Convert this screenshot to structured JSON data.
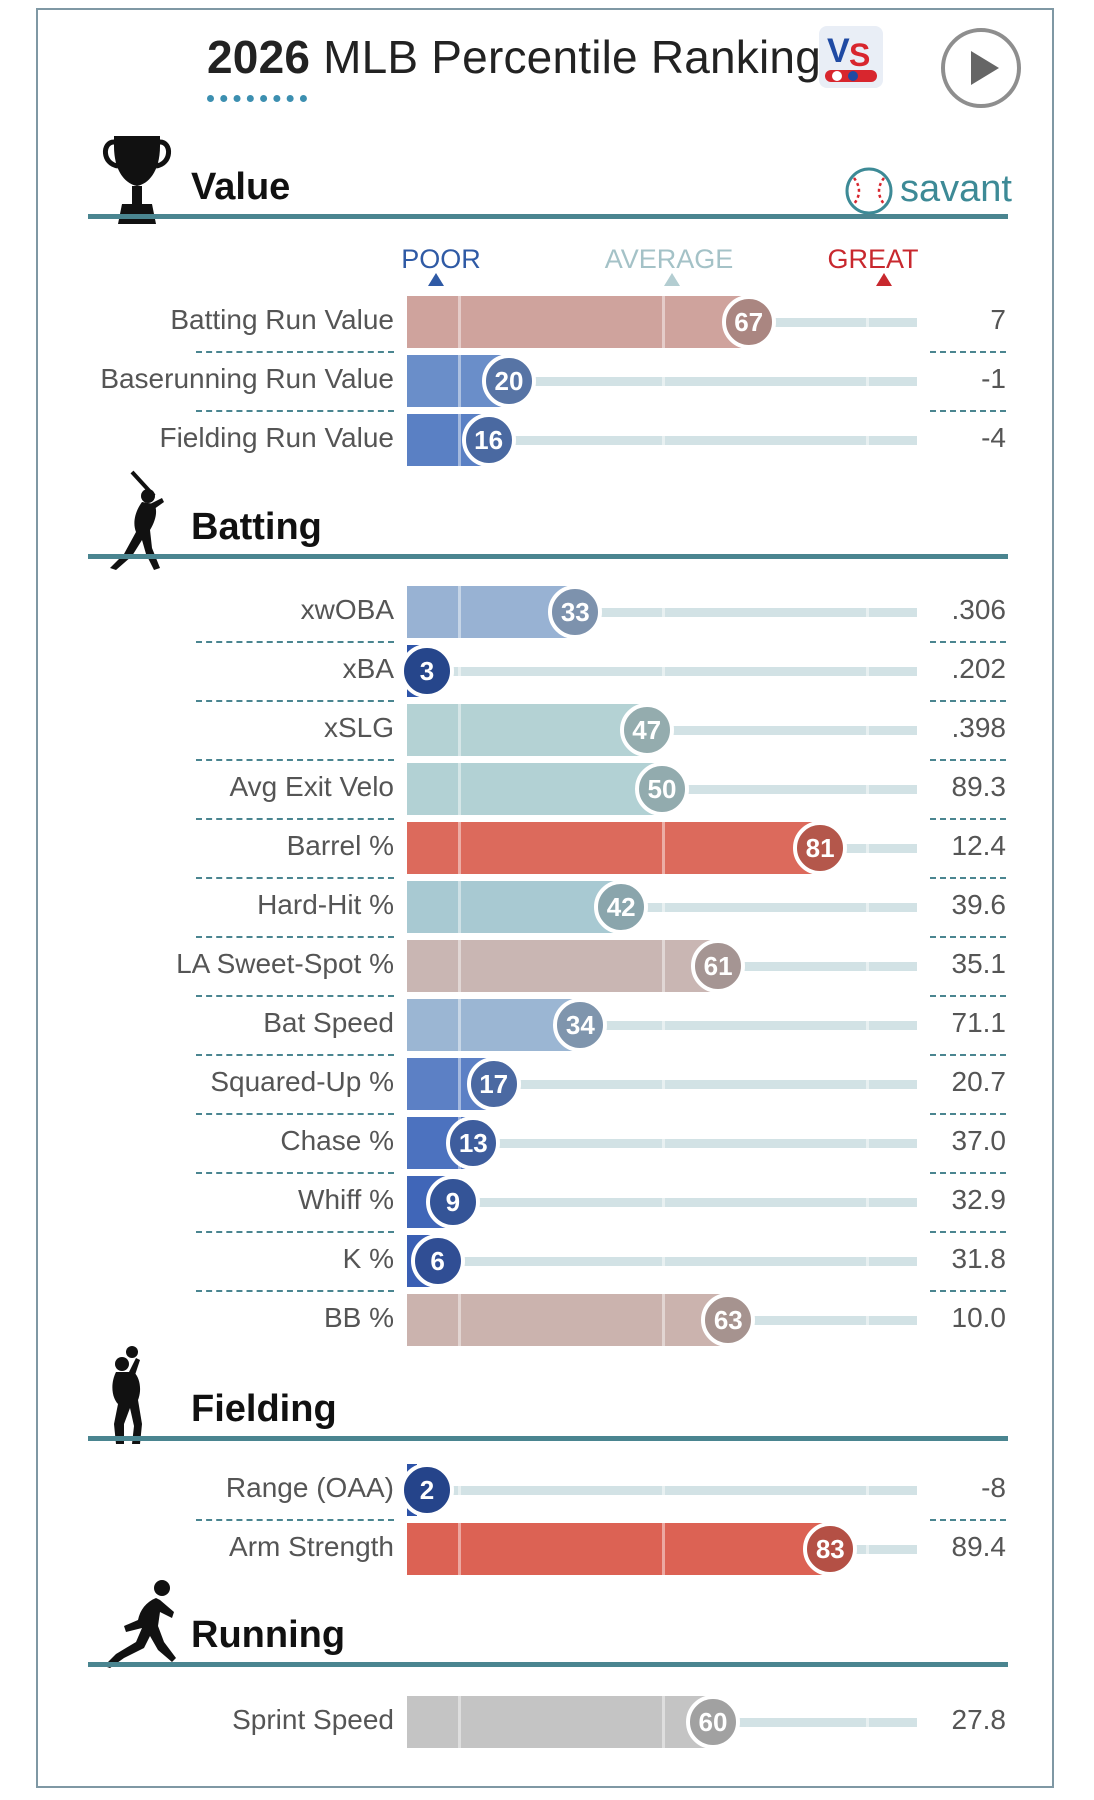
{
  "header": {
    "title_year": "2026",
    "title_rest": " MLB Percentile Rankings",
    "logo": "vs-logo",
    "play_icon": "play-icon"
  },
  "brand": {
    "name": "savant",
    "icon": "baseball-icon"
  },
  "scale": {
    "poor": "POOR",
    "average": "AVERAGE",
    "great": "GREAT",
    "colors": {
      "poor": "#3a68b4",
      "average": "#a9c4c9",
      "great": "#c8282e"
    }
  },
  "chart_data": {
    "type": "bar",
    "title": "2026 MLB Percentile Rankings",
    "xlim": [
      0,
      100
    ],
    "sections": [
      {
        "name": "Value",
        "icon": "trophy-icon",
        "metrics": [
          {
            "label": "Batting Run Value",
            "percentile": 67,
            "value": "7",
            "color": "#cfa39d"
          },
          {
            "label": "Baserunning Run Value",
            "percentile": 20,
            "value": "-1",
            "color": "#6a8ec9"
          },
          {
            "label": "Fielding Run Value",
            "percentile": 16,
            "value": "-4",
            "color": "#5a80c4"
          }
        ]
      },
      {
        "name": "Batting",
        "icon": "batter-icon",
        "metrics": [
          {
            "label": "xwOBA",
            "percentile": 33,
            "value": ".306",
            "color": "#98b2d3"
          },
          {
            "label": "xBA",
            "percentile": 3,
            "value": ".202",
            "color": "#2e55aa"
          },
          {
            "label": "xSLG",
            "percentile": 47,
            "value": ".398",
            "color": "#b4d2d4"
          },
          {
            "label": "Avg Exit Velo",
            "percentile": 50,
            "value": "89.3",
            "color": "#b2d1d4"
          },
          {
            "label": "Barrel %",
            "percentile": 81,
            "value": "12.4",
            "color": "#dc6a5c"
          },
          {
            "label": "Hard-Hit %",
            "percentile": 42,
            "value": "39.6",
            "color": "#a8c9d2"
          },
          {
            "label": "LA Sweet-Spot %",
            "percentile": 61,
            "value": "35.1",
            "color": "#c9b6b3"
          },
          {
            "label": "Bat Speed",
            "percentile": 34,
            "value": "71.1",
            "color": "#9bb6d3"
          },
          {
            "label": "Squared-Up %",
            "percentile": 17,
            "value": "20.7",
            "color": "#5c80c5"
          },
          {
            "label": "Chase %",
            "percentile": 13,
            "value": "37.0",
            "color": "#4c72bf"
          },
          {
            "label": "Whiff %",
            "percentile": 9,
            "value": "32.9",
            "color": "#4066b8"
          },
          {
            "label": "K %",
            "percentile": 6,
            "value": "31.8",
            "color": "#3a5fb4"
          },
          {
            "label": "BB %",
            "percentile": 63,
            "value": "10.0",
            "color": "#cbb3ae"
          }
        ]
      },
      {
        "name": "Fielding",
        "icon": "fielder-icon",
        "metrics": [
          {
            "label": "Range (OAA)",
            "percentile": 2,
            "value": "-8",
            "color": "#2d53a8"
          },
          {
            "label": "Arm Strength",
            "percentile": 83,
            "value": "89.4",
            "color": "#dc6254"
          }
        ]
      },
      {
        "name": "Running",
        "icon": "runner-icon",
        "metrics": [
          {
            "label": "Sprint Speed",
            "percentile": 60,
            "value": "27.8",
            "color": "#c4c4c4"
          }
        ]
      }
    ]
  }
}
